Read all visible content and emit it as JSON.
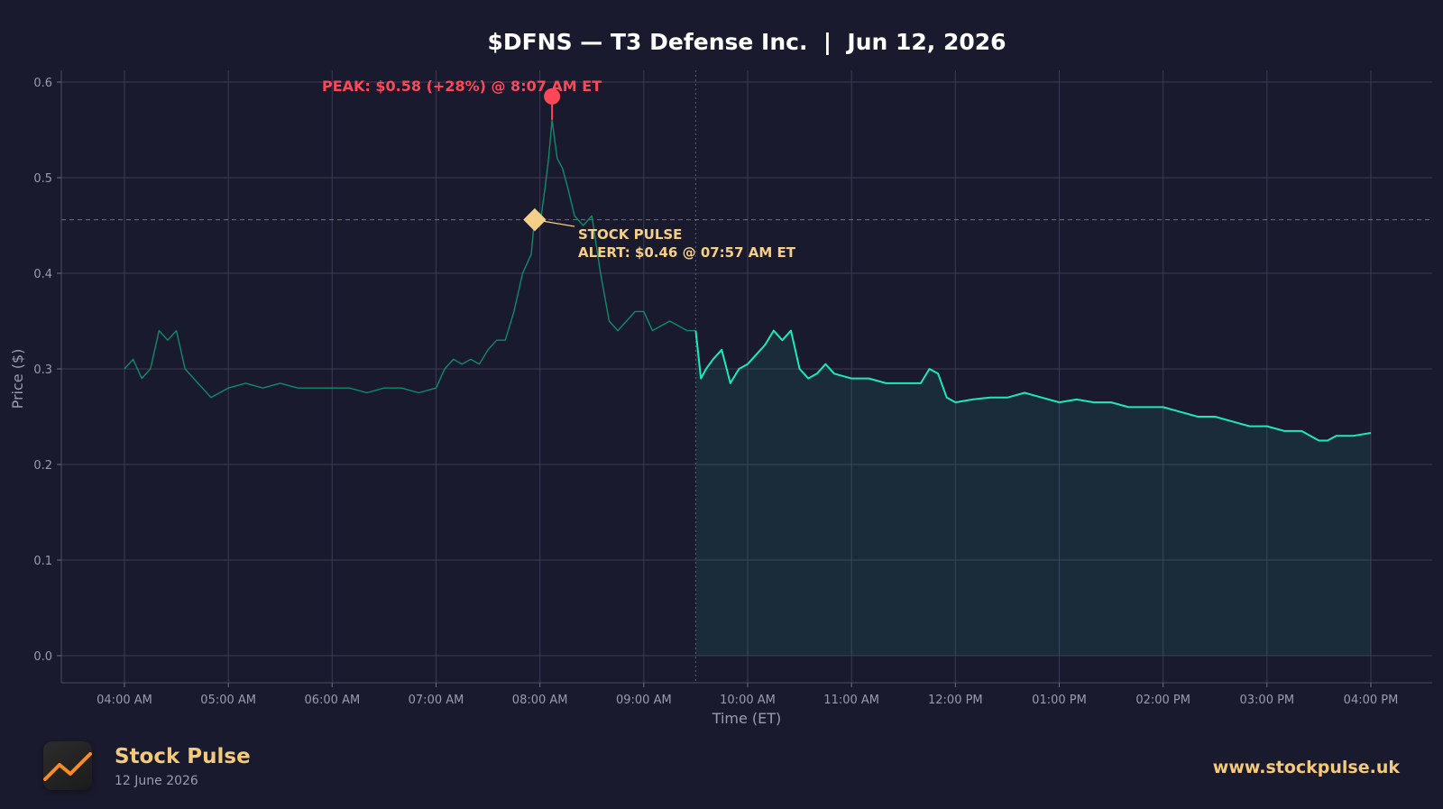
{
  "chart_data": {
    "type": "line",
    "title": "$DFNS — T3 Defense Inc.  |  Jun 12, 2026",
    "xlabel": "Time (ET)",
    "ylabel": "Price ($)",
    "ylim": [
      -0.03,
      0.612
    ],
    "xlim": [
      "03:42 AM",
      "04:00 PM"
    ],
    "grid": true,
    "y_ticks": [
      "0.0",
      "0.1",
      "0.2",
      "0.3",
      "0.4",
      "0.5",
      "0.6"
    ],
    "x_ticks": [
      "04:00 AM",
      "05:00 AM",
      "06:00 AM",
      "07:00 AM",
      "08:00 AM",
      "09:00 AM",
      "10:00 AM",
      "11:00 AM",
      "12:00 PM",
      "01:00 PM",
      "02:00 PM",
      "03:00 PM",
      "04:00 PM"
    ],
    "market_open": "09:30 AM",
    "series": [
      {
        "session": "premarket",
        "x": [
          "04:00 AM",
          "04:05 AM",
          "04:10 AM",
          "04:15 AM",
          "04:20 AM",
          "04:25 AM",
          "04:30 AM",
          "04:35 AM",
          "04:40 AM",
          "04:45 AM",
          "04:50 AM",
          "05:00 AM",
          "05:10 AM",
          "05:20 AM",
          "05:30 AM",
          "05:40 AM",
          "05:50 AM",
          "06:00 AM",
          "06:10 AM",
          "06:20 AM",
          "06:30 AM",
          "06:40 AM",
          "06:50 AM",
          "07:00 AM",
          "07:05 AM",
          "07:10 AM",
          "07:15 AM",
          "07:20 AM",
          "07:25 AM",
          "07:30 AM",
          "07:35 AM",
          "07:40 AM",
          "07:45 AM",
          "07:50 AM",
          "07:55 AM",
          "07:57 AM",
          "08:00 AM",
          "08:03 AM",
          "08:05 AM",
          "08:07 AM",
          "08:10 AM",
          "08:13 AM",
          "08:16 AM",
          "08:20 AM",
          "08:25 AM",
          "08:30 AM",
          "08:35 AM",
          "08:40 AM",
          "08:45 AM",
          "08:50 AM",
          "08:55 AM",
          "09:00 AM",
          "09:05 AM",
          "09:10 AM",
          "09:15 AM",
          "09:20 AM",
          "09:25 AM",
          "09:30 AM"
        ],
        "y": [
          0.3,
          0.31,
          0.29,
          0.3,
          0.34,
          0.33,
          0.34,
          0.3,
          0.29,
          0.28,
          0.27,
          0.28,
          0.285,
          0.28,
          0.285,
          0.28,
          0.28,
          0.28,
          0.28,
          0.275,
          0.28,
          0.28,
          0.275,
          0.28,
          0.3,
          0.31,
          0.305,
          0.31,
          0.305,
          0.32,
          0.33,
          0.33,
          0.36,
          0.4,
          0.42,
          0.46,
          0.45,
          0.49,
          0.52,
          0.56,
          0.52,
          0.51,
          0.49,
          0.46,
          0.45,
          0.46,
          0.4,
          0.35,
          0.34,
          0.35,
          0.36,
          0.36,
          0.34,
          0.345,
          0.35,
          0.345,
          0.34,
          0.34
        ]
      },
      {
        "session": "regular",
        "x": [
          "09:30 AM",
          "09:33 AM",
          "09:36 AM",
          "09:40 AM",
          "09:45 AM",
          "09:50 AM",
          "09:55 AM",
          "10:00 AM",
          "10:05 AM",
          "10:10 AM",
          "10:15 AM",
          "10:20 AM",
          "10:25 AM",
          "10:30 AM",
          "10:35 AM",
          "10:40 AM",
          "10:45 AM",
          "10:50 AM",
          "11:00 AM",
          "11:10 AM",
          "11:20 AM",
          "11:30 AM",
          "11:40 AM",
          "11:45 AM",
          "11:50 AM",
          "11:55 AM",
          "12:00 PM",
          "12:10 PM",
          "12:20 PM",
          "12:30 PM",
          "12:40 PM",
          "12:50 PM",
          "01:00 PM",
          "01:10 PM",
          "01:20 PM",
          "01:30 PM",
          "01:40 PM",
          "01:50 PM",
          "02:00 PM",
          "02:10 PM",
          "02:20 PM",
          "02:30 PM",
          "02:40 PM",
          "02:50 PM",
          "03:00 PM",
          "03:10 PM",
          "03:20 PM",
          "03:30 PM",
          "03:35 PM",
          "03:40 PM",
          "03:45 PM",
          "03:50 PM",
          "04:00 PM"
        ],
        "y": [
          0.34,
          0.29,
          0.3,
          0.31,
          0.32,
          0.285,
          0.3,
          0.305,
          0.315,
          0.325,
          0.34,
          0.33,
          0.34,
          0.3,
          0.29,
          0.295,
          0.305,
          0.295,
          0.29,
          0.29,
          0.285,
          0.285,
          0.285,
          0.3,
          0.295,
          0.27,
          0.265,
          0.268,
          0.27,
          0.27,
          0.275,
          0.27,
          0.265,
          0.268,
          0.265,
          0.265,
          0.26,
          0.26,
          0.26,
          0.255,
          0.25,
          0.25,
          0.245,
          0.24,
          0.24,
          0.235,
          0.235,
          0.225,
          0.225,
          0.23,
          0.23,
          0.23,
          0.233
        ]
      }
    ],
    "alert_line": 0.456,
    "annotations": {
      "peak": {
        "label": "PEAK: $0.58 (+28%) @ 8:07 AM ET",
        "x": "08:07 AM",
        "y": 0.585,
        "color": "#ff4757"
      },
      "alert": {
        "line1": "STOCK PULSE",
        "line2": "ALERT: $0.46 @ 07:57 AM ET",
        "x": "07:57 AM",
        "y": 0.456,
        "color": "#f5cf87"
      }
    },
    "colors": {
      "background": "#1a1a2e",
      "line": "#1de9b6",
      "premarket_line": "#0f8a6d",
      "grid": "#3a3a52",
      "axis_text": "#9a9ab0"
    }
  },
  "footer": {
    "brand": "Stock Pulse",
    "date": "12 June 2026",
    "url": "www.stockpulse.uk",
    "logo_icon": "chart-line-icon"
  }
}
